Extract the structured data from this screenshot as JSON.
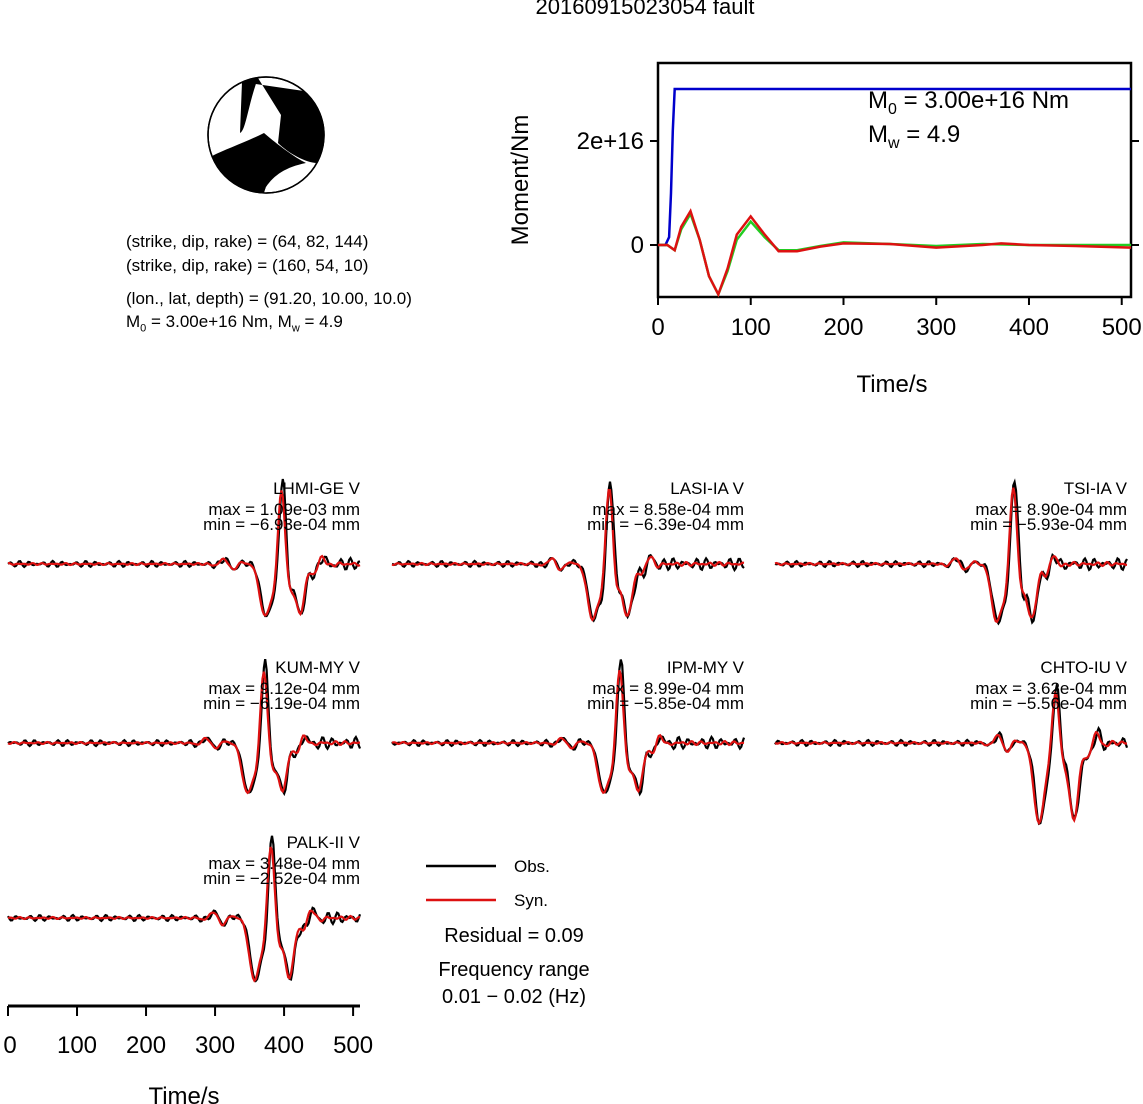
{
  "title": "20160915023054 fault",
  "beachball": {
    "color": "#000000"
  },
  "mechanism": {
    "line1": "(strike, dip, rake) = (64, 82, 144)",
    "line2": "(strike, dip, rake) = (160, 54, 10)",
    "line3": "(lon., lat, depth) = (91.20, 10.00, 10.0)",
    "m0_label": "M",
    "m0_sub": "0",
    "m0_value": " = 3.00e+16 Nm, M",
    "mw_sub": "w",
    "mw_value": " = 4.9"
  },
  "moment_plot": {
    "ylabel": "Moment/Nm",
    "xlabel": "Time/s",
    "x_ticks": [
      "0",
      "100",
      "200",
      "300",
      "400",
      "500"
    ],
    "y_ticks": [
      "0",
      "2e+16"
    ],
    "annot_m0": " = 3.00e+16 Nm",
    "annot_mw": " = 4.9",
    "annot_m": "M",
    "annot_sub0": "0",
    "annot_subw": "w",
    "colors": {
      "cumulative": "#0000cc",
      "rate_a": "#22cc22",
      "rate_b": "#dd1111"
    }
  },
  "chart_data": [
    {
      "type": "line",
      "title": "",
      "xlabel": "Time/s",
      "ylabel": "Moment/Nm",
      "xlim": [
        0,
        510
      ],
      "ylim": [
        -1e+16,
        3.5e+16
      ],
      "series": [
        {
          "x": [
            0,
            8,
            12,
            14,
            16,
            18,
            20,
            510
          ],
          "values": [
            0,
            0,
            1500000000000000.0,
            1e+16,
            2.2e+16,
            3e+16,
            3e+16,
            3e+16
          ]
        },
        {
          "x": [
            0,
            10,
            18,
            25,
            35,
            45,
            55,
            65,
            75,
            85,
            100,
            115,
            130,
            150,
            175,
            200,
            250,
            300,
            350,
            400,
            450,
            510
          ],
          "values": [
            0,
            0,
            -1000000000000000.0,
            3000000000000000.0,
            6000000000000000.0,
            1000000000000000.0,
            -6000000000000000.0,
            -9500000000000000.0,
            -5000000000000000.0,
            1000000000000000.0,
            4500000000000000.0,
            1500000000000000.0,
            -1000000000000000.0,
            -1000000000000000.0,
            -200000000000000.0,
            500000000000000.0,
            200000000000000.0,
            -200000000000000.0,
            200000000000000.0,
            0.0,
            0.0,
            0.0
          ]
        },
        {
          "x": [
            0,
            10,
            18,
            25,
            35,
            45,
            55,
            65,
            75,
            85,
            100,
            115,
            130,
            150,
            175,
            200,
            250,
            300,
            350,
            370,
            400,
            450,
            510
          ],
          "values": [
            0,
            0,
            -1000000000000000.0,
            3500000000000000.0,
            6500000000000000.0,
            1000000000000000.0,
            -6000000000000000.0,
            -9500000000000000.0,
            -4500000000000000.0,
            2000000000000000.0,
            5500000000000000.0,
            2000000000000000.0,
            -1200000000000000.0,
            -1200000000000000.0,
            -300000000000000.0,
            300000000000000.0,
            200000000000000.0,
            -500000000000000.0,
            0.0,
            300000000000000.0,
            0.0,
            -200000000000000.0,
            -500000000000000.0
          ]
        }
      ]
    },
    {
      "type": "line",
      "title": "",
      "xlabel": "Time/s",
      "xlim": [
        0,
        510
      ],
      "series": [
        {
          "name": "Obs.",
          "color": "#000000"
        },
        {
          "name": "Syn.",
          "color": "#dd1111"
        }
      ]
    }
  ],
  "stations": [
    {
      "name": "LHMI-GE V",
      "max": "max = 1.09e-03 mm",
      "min": "min = −6.93e-04 mm"
    },
    {
      "name": "LASI-IA V",
      "max": "max = 8.58e-04 mm",
      "min": "min = −6.39e-04 mm"
    },
    {
      "name": "TSI-IA V",
      "max": "max = 8.90e-04 mm",
      "min": "min = −5.93e-04 mm"
    },
    {
      "name": "KUM-MY V",
      "max": "max = 9.12e-04 mm",
      "min": "min = −6.19e-04 mm"
    },
    {
      "name": "IPM-MY V",
      "max": "max = 8.99e-04 mm",
      "min": "min = −5.85e-04 mm"
    },
    {
      "name": "CHTO-IU V",
      "max": "max = 3.62e-04 mm",
      "min": "min = −5.56e-04 mm"
    },
    {
      "name": "PALK-II V",
      "max": "max = 3.48e-04 mm",
      "min": "min = −2.52e-04 mm"
    }
  ],
  "legend": {
    "obs": "Obs.",
    "syn": "Syn."
  },
  "residual": "Residual = 0.09",
  "freq_label": "Frequency range",
  "freq_value": "0.01 − 0.02 (Hz)",
  "wave_axis": {
    "xlabel": "Time/s",
    "ticks": [
      "0",
      "100",
      "200",
      "300",
      "400",
      "500"
    ]
  }
}
